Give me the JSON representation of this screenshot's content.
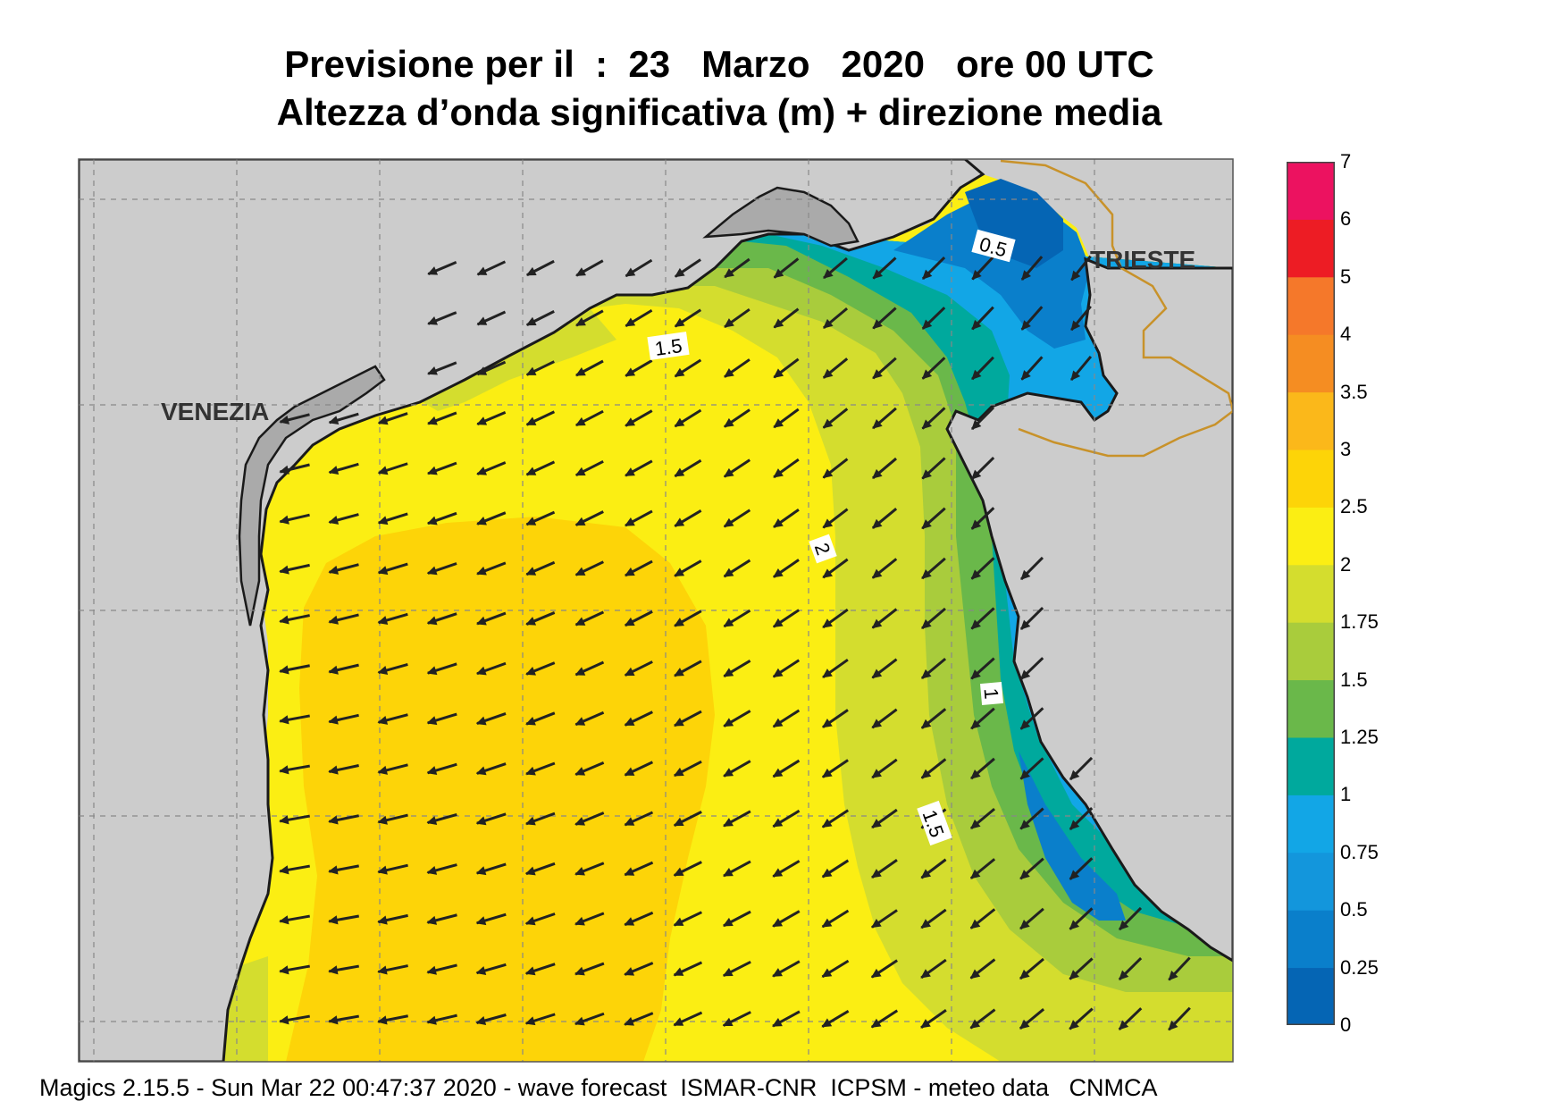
{
  "header": {
    "title_line1": "Previsione per il  :  23   Marzo   2020   ore 00 UTC",
    "title_line2": "Altezza d’onda significativa (m) + direzione media"
  },
  "map": {
    "cities": [
      {
        "name": "VENEZIA"
      },
      {
        "name": "TRIESTE"
      }
    ],
    "contour_labels": [
      "0.5",
      "1.5",
      "2",
      "1",
      "1.5"
    ]
  },
  "legend": {
    "levels": [
      "0",
      "0.25",
      "0.5",
      "0.75",
      "1",
      "1.25",
      "1.5",
      "1.75",
      "2",
      "2.5",
      "3",
      "3.5",
      "4",
      "5",
      "6",
      "7"
    ],
    "colors": [
      "#0565b4",
      "#0a7fcb",
      "#1396dc",
      "#12a6e6",
      "#00a99d",
      "#6ab84a",
      "#a9cc3c",
      "#d4dd2e",
      "#fbee13",
      "#fdd408",
      "#fbb81a",
      "#f58d22",
      "#f5782a",
      "#ed1c24",
      "#ec1260"
    ]
  },
  "footer": {
    "text": "Magics 2.15.5 - Sun Mar 22 00:47:37 2020 - wave forecast  ISMAR-CNR  ICPSM - meteo data   CNMCA"
  }
}
